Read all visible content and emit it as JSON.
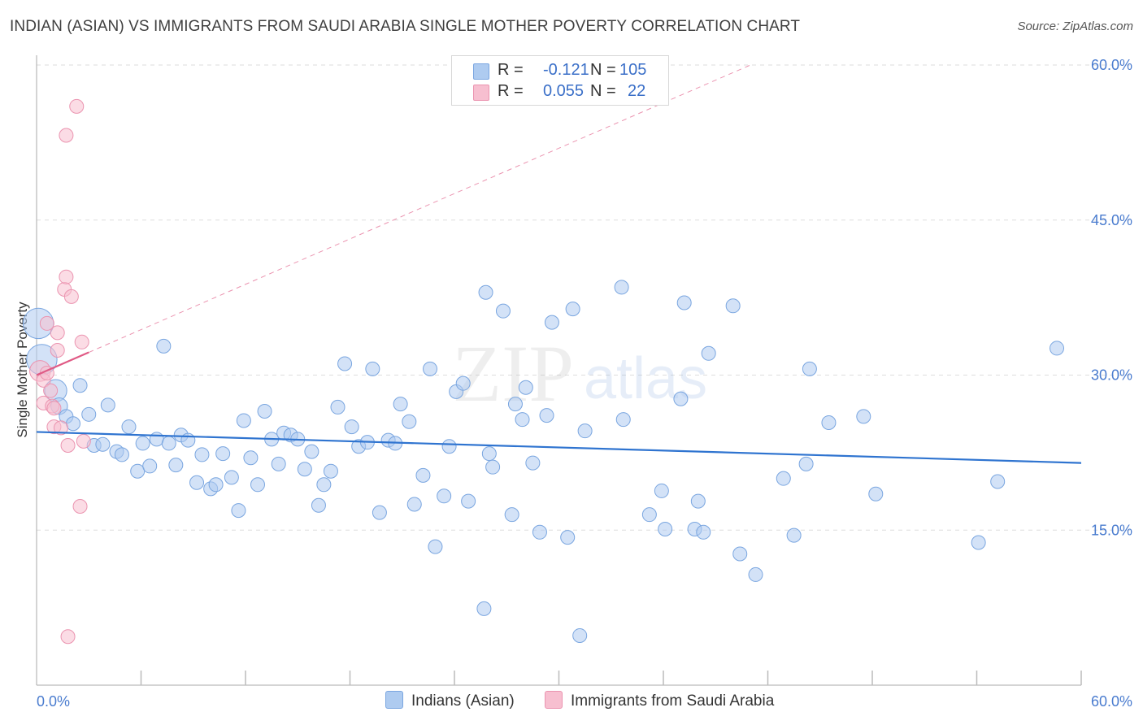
{
  "title": "INDIAN (ASIAN) VS IMMIGRANTS FROM SAUDI ARABIA SINGLE MOTHER POVERTY CORRELATION CHART",
  "source": "Source: ZipAtlas.com",
  "watermark": {
    "zip": "ZIP",
    "atlas": "atlas"
  },
  "legend": {
    "r_label": "R =",
    "n_label": "N =",
    "series1": {
      "r": "-0.121",
      "n": "105"
    },
    "series2": {
      "r": "0.055",
      "n": "22"
    }
  },
  "bottom_legend": {
    "series1": "Indians (Asian)",
    "series2": "Immigrants from Saudi Arabia"
  },
  "colors": {
    "series1_fill": "#aecbf0",
    "series1_stroke": "#7aa6e0",
    "series1_line": "#2f74d0",
    "series2_fill": "#f7bfd0",
    "series2_stroke": "#eb94b0",
    "series2_line": "#e05a85",
    "tick": "#4a7ccf",
    "grid": "#dddddd"
  },
  "chart_data": {
    "type": "scatter",
    "title": "INDIAN (ASIAN) VS IMMIGRANTS FROM SAUDI ARABIA SINGLE MOTHER POVERTY CORRELATION CHART",
    "xlabel": "",
    "ylabel": "Single Mother Poverty",
    "xlim": [
      0,
      60
    ],
    "ylim": [
      0,
      60
    ],
    "x_tick_labels": [
      "0.0%",
      "60.0%"
    ],
    "y_ticks": [
      15,
      30,
      45,
      60
    ],
    "y_tick_labels": [
      "15.0%",
      "30.0%",
      "45.0%",
      "60.0%"
    ],
    "grid": true,
    "series": [
      {
        "name": "Indians (Asian)",
        "r": -0.121,
        "n": 105,
        "trend": {
          "x": [
            0,
            60
          ],
          "y": [
            24.5,
            21.5
          ]
        },
        "points": [
          {
            "x": 0.1,
            "y": 35.0,
            "s": 2.2
          },
          {
            "x": 0.3,
            "y": 31.5,
            "s": 2.2
          },
          {
            "x": 1.1,
            "y": 28.5,
            "s": 1.6
          },
          {
            "x": 1.3,
            "y": 27.0,
            "s": 1.2
          },
          {
            "x": 1.7,
            "y": 26.0
          },
          {
            "x": 2.1,
            "y": 25.3
          },
          {
            "x": 2.5,
            "y": 29.0
          },
          {
            "x": 3.0,
            "y": 26.2
          },
          {
            "x": 3.3,
            "y": 23.2
          },
          {
            "x": 3.8,
            "y": 23.3
          },
          {
            "x": 4.1,
            "y": 27.1
          },
          {
            "x": 4.6,
            "y": 22.6
          },
          {
            "x": 4.9,
            "y": 22.3
          },
          {
            "x": 5.3,
            "y": 25.0
          },
          {
            "x": 5.8,
            "y": 20.7
          },
          {
            "x": 6.1,
            "y": 23.4
          },
          {
            "x": 6.5,
            "y": 21.2
          },
          {
            "x": 6.9,
            "y": 23.8
          },
          {
            "x": 7.3,
            "y": 32.8
          },
          {
            "x": 7.6,
            "y": 23.4
          },
          {
            "x": 8.0,
            "y": 21.3
          },
          {
            "x": 8.3,
            "y": 24.2
          },
          {
            "x": 8.7,
            "y": 23.7
          },
          {
            "x": 9.2,
            "y": 19.6
          },
          {
            "x": 9.5,
            "y": 22.3
          },
          {
            "x": 10.0,
            "y": 19.0
          },
          {
            "x": 10.3,
            "y": 19.4
          },
          {
            "x": 10.7,
            "y": 22.4
          },
          {
            "x": 11.2,
            "y": 20.1
          },
          {
            "x": 11.6,
            "y": 16.9
          },
          {
            "x": 11.9,
            "y": 25.6
          },
          {
            "x": 12.3,
            "y": 22.0
          },
          {
            "x": 12.7,
            "y": 19.4
          },
          {
            "x": 13.1,
            "y": 26.5
          },
          {
            "x": 13.5,
            "y": 23.8
          },
          {
            "x": 13.9,
            "y": 21.4
          },
          {
            "x": 14.2,
            "y": 24.4
          },
          {
            "x": 14.6,
            "y": 24.2
          },
          {
            "x": 15.0,
            "y": 23.8
          },
          {
            "x": 15.4,
            "y": 20.9
          },
          {
            "x": 15.8,
            "y": 22.6
          },
          {
            "x": 16.2,
            "y": 17.4
          },
          {
            "x": 16.5,
            "y": 19.4
          },
          {
            "x": 16.9,
            "y": 20.7
          },
          {
            "x": 17.3,
            "y": 26.9
          },
          {
            "x": 17.7,
            "y": 31.1
          },
          {
            "x": 18.1,
            "y": 25.0
          },
          {
            "x": 18.5,
            "y": 23.1
          },
          {
            "x": 19.0,
            "y": 23.5
          },
          {
            "x": 19.3,
            "y": 30.6
          },
          {
            "x": 19.7,
            "y": 16.7
          },
          {
            "x": 20.2,
            "y": 23.7
          },
          {
            "x": 20.6,
            "y": 23.4
          },
          {
            "x": 20.9,
            "y": 27.2
          },
          {
            "x": 21.4,
            "y": 25.5
          },
          {
            "x": 21.7,
            "y": 17.5
          },
          {
            "x": 22.2,
            "y": 20.3
          },
          {
            "x": 22.6,
            "y": 30.6
          },
          {
            "x": 22.9,
            "y": 13.4
          },
          {
            "x": 23.4,
            "y": 18.3
          },
          {
            "x": 23.7,
            "y": 23.1
          },
          {
            "x": 24.1,
            "y": 28.4
          },
          {
            "x": 24.5,
            "y": 29.2
          },
          {
            "x": 24.8,
            "y": 17.8
          },
          {
            "x": 25.7,
            "y": 7.4
          },
          {
            "x": 25.8,
            "y": 38.0
          },
          {
            "x": 26.0,
            "y": 22.4
          },
          {
            "x": 26.2,
            "y": 21.1
          },
          {
            "x": 26.8,
            "y": 36.2
          },
          {
            "x": 27.3,
            "y": 16.5
          },
          {
            "x": 27.5,
            "y": 27.2
          },
          {
            "x": 27.9,
            "y": 25.7
          },
          {
            "x": 28.1,
            "y": 28.8
          },
          {
            "x": 28.5,
            "y": 21.5
          },
          {
            "x": 28.9,
            "y": 14.8
          },
          {
            "x": 29.3,
            "y": 26.1
          },
          {
            "x": 29.6,
            "y": 35.1
          },
          {
            "x": 30.5,
            "y": 14.3
          },
          {
            "x": 30.8,
            "y": 36.4
          },
          {
            "x": 31.2,
            "y": 4.8
          },
          {
            "x": 31.5,
            "y": 24.6
          },
          {
            "x": 33.6,
            "y": 38.5
          },
          {
            "x": 33.7,
            "y": 25.7
          },
          {
            "x": 35.2,
            "y": 16.5
          },
          {
            "x": 35.9,
            "y": 18.8
          },
          {
            "x": 36.1,
            "y": 15.1
          },
          {
            "x": 37.0,
            "y": 27.7
          },
          {
            "x": 37.2,
            "y": 37.0
          },
          {
            "x": 37.8,
            "y": 15.1
          },
          {
            "x": 38.0,
            "y": 17.8
          },
          {
            "x": 38.3,
            "y": 14.8
          },
          {
            "x": 38.6,
            "y": 32.1
          },
          {
            "x": 40.0,
            "y": 36.7
          },
          {
            "x": 40.4,
            "y": 12.7
          },
          {
            "x": 41.3,
            "y": 10.7
          },
          {
            "x": 42.9,
            "y": 20.0
          },
          {
            "x": 43.5,
            "y": 14.5
          },
          {
            "x": 44.2,
            "y": 21.4
          },
          {
            "x": 44.4,
            "y": 30.6
          },
          {
            "x": 45.5,
            "y": 25.4
          },
          {
            "x": 47.5,
            "y": 26.0
          },
          {
            "x": 48.2,
            "y": 18.5
          },
          {
            "x": 54.1,
            "y": 13.8
          },
          {
            "x": 55.2,
            "y": 19.7
          },
          {
            "x": 58.6,
            "y": 32.6
          }
        ]
      },
      {
        "name": "Immigrants from Saudi Arabia",
        "r": 0.055,
        "n": 22,
        "trend": {
          "x": [
            0,
            3.0
          ],
          "y": [
            30.0,
            32.2
          ],
          "extended": {
            "x": [
              3.0,
              41.0
            ],
            "y": [
              32.2,
              60.0
            ]
          }
        },
        "points": [
          {
            "x": 0.2,
            "y": 30.4,
            "s": 1.5
          },
          {
            "x": 0.4,
            "y": 29.5
          },
          {
            "x": 0.4,
            "y": 27.3
          },
          {
            "x": 0.6,
            "y": 30.2
          },
          {
            "x": 0.6,
            "y": 35.0
          },
          {
            "x": 0.8,
            "y": 28.5
          },
          {
            "x": 0.9,
            "y": 27.0
          },
          {
            "x": 1.0,
            "y": 26.8
          },
          {
            "x": 1.0,
            "y": 25.0
          },
          {
            "x": 1.2,
            "y": 32.4
          },
          {
            "x": 1.2,
            "y": 34.1
          },
          {
            "x": 1.4,
            "y": 24.9
          },
          {
            "x": 1.6,
            "y": 38.3
          },
          {
            "x": 1.7,
            "y": 39.5
          },
          {
            "x": 1.7,
            "y": 53.2
          },
          {
            "x": 1.8,
            "y": 23.2
          },
          {
            "x": 1.8,
            "y": 4.7
          },
          {
            "x": 2.0,
            "y": 37.6
          },
          {
            "x": 2.3,
            "y": 56.0
          },
          {
            "x": 2.5,
            "y": 17.3
          },
          {
            "x": 2.6,
            "y": 33.2
          },
          {
            "x": 2.7,
            "y": 23.6
          }
        ]
      }
    ]
  }
}
